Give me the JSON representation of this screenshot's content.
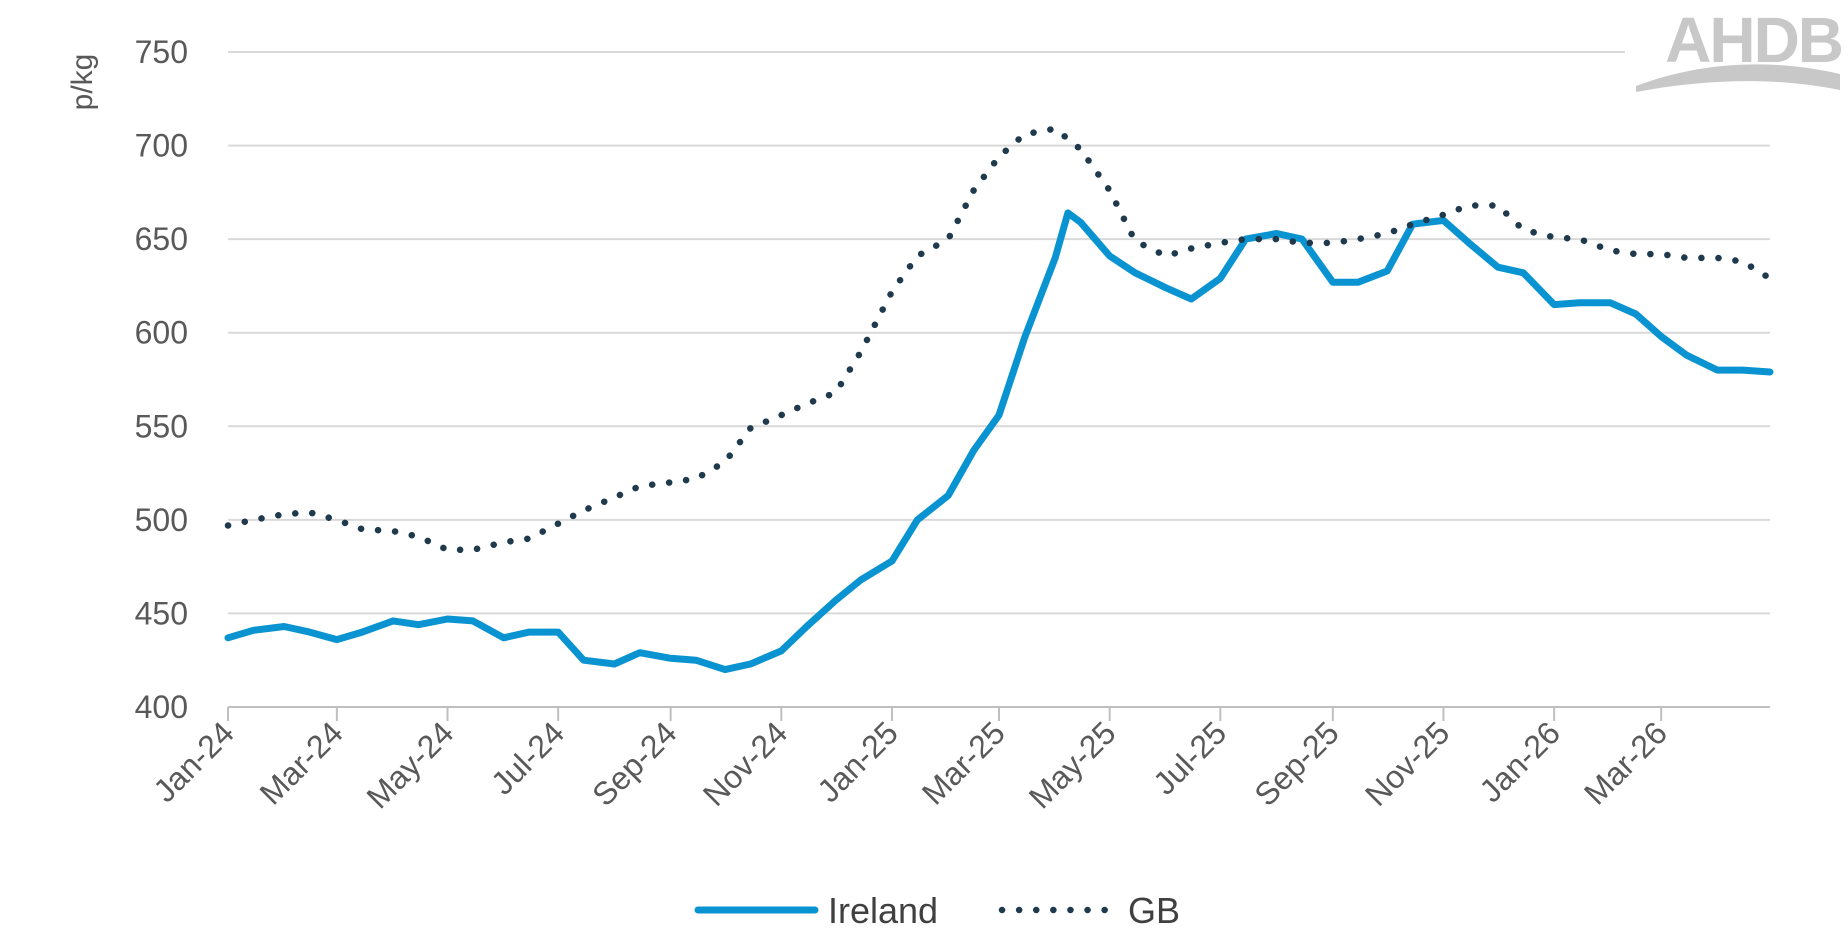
{
  "logo": {
    "text": "AHDB"
  },
  "chart_data": {
    "type": "line",
    "ylabel": "p/kg",
    "ylim": [
      400,
      750
    ],
    "yticks": [
      400,
      450,
      500,
      550,
      600,
      650,
      700,
      750
    ],
    "x_start": "2024-01-01",
    "x_end": "2026-04-30",
    "xtick_dates": [
      "2024-01-01",
      "2024-03-01",
      "2024-05-01",
      "2024-07-01",
      "2024-09-01",
      "2024-11-01",
      "2025-01-01",
      "2025-03-01",
      "2025-05-01",
      "2025-07-01",
      "2025-09-01",
      "2025-11-01",
      "2026-01-01",
      "2026-03-01"
    ],
    "xtick_labels": [
      "Jan-24",
      "Mar-24",
      "May-24",
      "Jul-24",
      "Sep-24",
      "Nov-24",
      "Jan-25",
      "Mar-25",
      "May-25",
      "Jul-25",
      "Sep-25",
      "Nov-25",
      "Jan-26",
      "Mar-26"
    ],
    "grid": true,
    "legend": "bottom",
    "series": [
      {
        "name": "Ireland",
        "color": "#0a93d1",
        "style": "solid",
        "x": [
          "2024-01-01",
          "2024-01-15",
          "2024-02-01",
          "2024-02-15",
          "2024-03-01",
          "2024-03-15",
          "2024-04-01",
          "2024-04-15",
          "2024-05-01",
          "2024-05-15",
          "2024-06-01",
          "2024-06-15",
          "2024-07-01",
          "2024-07-15",
          "2024-08-01",
          "2024-08-15",
          "2024-09-01",
          "2024-09-15",
          "2024-10-01",
          "2024-10-15",
          "2024-11-01",
          "2024-11-15",
          "2024-12-01",
          "2024-12-15",
          "2025-01-01",
          "2025-01-15",
          "2025-02-01",
          "2025-02-15",
          "2025-03-01",
          "2025-03-15",
          "2025-04-01",
          "2025-04-08",
          "2025-04-15",
          "2025-05-01",
          "2025-05-15",
          "2025-06-01",
          "2025-06-15",
          "2025-07-01",
          "2025-07-15",
          "2025-08-01",
          "2025-08-15",
          "2025-09-01",
          "2025-09-15",
          "2025-10-01",
          "2025-10-15",
          "2025-11-01",
          "2025-11-15",
          "2025-12-01",
          "2025-12-15",
          "2026-01-01",
          "2026-01-15",
          "2026-02-01",
          "2026-02-15",
          "2026-03-01",
          "2026-03-15",
          "2026-04-01",
          "2026-04-15",
          "2026-04-30"
        ],
        "values": [
          437,
          441,
          443,
          440,
          436,
          440,
          446,
          444,
          447,
          446,
          437,
          440,
          440,
          425,
          423,
          429,
          426,
          425,
          420,
          423,
          430,
          443,
          457,
          468,
          478,
          500,
          513,
          537,
          556,
          597,
          640,
          664,
          659,
          641,
          632,
          624,
          618,
          629,
          650,
          653,
          650,
          627,
          627,
          633,
          658,
          660,
          648,
          635,
          632,
          615,
          616,
          616,
          610,
          598,
          588,
          580,
          580,
          579
        ]
      },
      {
        "name": "GB",
        "color": "#1f3a4d",
        "style": "dotted",
        "x": [
          "2024-01-01",
          "2024-01-15",
          "2024-02-01",
          "2024-02-15",
          "2024-03-01",
          "2024-03-15",
          "2024-04-01",
          "2024-04-15",
          "2024-05-01",
          "2024-05-15",
          "2024-06-01",
          "2024-06-15",
          "2024-07-01",
          "2024-07-15",
          "2024-08-01",
          "2024-08-15",
          "2024-09-01",
          "2024-09-15",
          "2024-10-01",
          "2024-10-15",
          "2024-11-01",
          "2024-11-15",
          "2024-12-01",
          "2024-12-15",
          "2025-01-01",
          "2025-01-15",
          "2025-02-01",
          "2025-02-15",
          "2025-03-01",
          "2025-03-15",
          "2025-04-01",
          "2025-04-15",
          "2025-05-01",
          "2025-05-15",
          "2025-06-01",
          "2025-06-15",
          "2025-07-01",
          "2025-07-15",
          "2025-08-01",
          "2025-08-15",
          "2025-09-01",
          "2025-09-15",
          "2025-10-01",
          "2025-10-15",
          "2025-11-01",
          "2025-11-15",
          "2025-12-01",
          "2025-12-15",
          "2026-01-01",
          "2026-01-15",
          "2026-02-01",
          "2026-02-15",
          "2026-03-01",
          "2026-03-15",
          "2026-04-01",
          "2026-04-15",
          "2026-04-30"
        ],
        "values": [
          497,
          500,
          503,
          504,
          500,
          495,
          494,
          491,
          484,
          484,
          488,
          490,
          498,
          505,
          512,
          518,
          520,
          522,
          531,
          549,
          556,
          562,
          568,
          590,
          622,
          641,
          650,
          676,
          694,
          706,
          709,
          698,
          676,
          649,
          641,
          645,
          648,
          650,
          650,
          648,
          648,
          650,
          653,
          658,
          663,
          668,
          668,
          655,
          651,
          650,
          644,
          642,
          642,
          640,
          640,
          638,
          629
        ]
      }
    ]
  }
}
